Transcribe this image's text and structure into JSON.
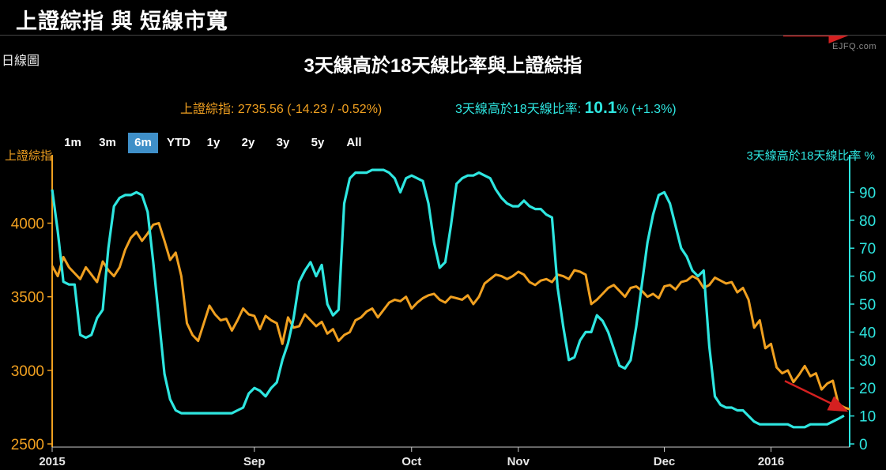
{
  "banner": {
    "title": "上證綜指 與 短線市寬"
  },
  "chart_header": {
    "period_label": "日線圖",
    "watermark": "EJFQ.com",
    "title": "3天線高於18天線比率與上證綜指"
  },
  "legend": {
    "index_label": "上證綜指:",
    "index_value": "2735.56 (-14.23 / -0.52%)",
    "ratio_label": "3天線高於18天線比率:",
    "ratio_value": "10.1",
    "ratio_suffix": "% (+1.3%)"
  },
  "range_buttons": [
    {
      "label": "1m",
      "active": false
    },
    {
      "label": "3m",
      "active": false
    },
    {
      "label": "6m",
      "active": true
    },
    {
      "label": "YTD",
      "active": false
    },
    {
      "label": "1y",
      "active": false
    },
    {
      "label": "2y",
      "active": false
    },
    {
      "label": "3y",
      "active": false
    },
    {
      "label": "5y",
      "active": false
    },
    {
      "label": "All",
      "active": false
    }
  ],
  "colors": {
    "index": "#f0a020",
    "ratio": "#2ee6e0",
    "arrow": "#d42020",
    "active_button": "#3f8fc8"
  },
  "chart_data": {
    "type": "line",
    "title": "3天線高於18天線比率與上證綜指",
    "y_left": {
      "label": "上證綜指",
      "ticks": [
        2500,
        3000,
        3500,
        4000
      ],
      "range": [
        2500,
        4400
      ]
    },
    "y_right": {
      "label": "3天線高於18天線比率 %",
      "ticks": [
        0,
        10,
        20,
        30,
        40,
        50,
        60,
        70,
        80,
        90
      ],
      "range": [
        0,
        100
      ]
    },
    "x_ticks": [
      {
        "label": "2015",
        "day": 0
      },
      {
        "label": "Sep",
        "day": 36
      },
      {
        "label": "Oct",
        "day": 64
      },
      {
        "label": "Nov",
        "day": 83
      },
      {
        "label": "Dec",
        "day": 109
      },
      {
        "label": "2016",
        "day": 128
      }
    ],
    "series": [
      {
        "name": "上證綜指",
        "axis": "left",
        "values": [
          3710,
          3640,
          3770,
          3700,
          3660,
          3620,
          3700,
          3650,
          3600,
          3740,
          3680,
          3640,
          3700,
          3820,
          3900,
          3940,
          3880,
          3930,
          3990,
          4000,
          3880,
          3750,
          3800,
          3640,
          3320,
          3240,
          3200,
          3320,
          3440,
          3380,
          3340,
          3350,
          3270,
          3340,
          3420,
          3380,
          3370,
          3280,
          3370,
          3340,
          3320,
          3180,
          3360,
          3290,
          3300,
          3380,
          3340,
          3300,
          3330,
          3250,
          3280,
          3200,
          3240,
          3260,
          3340,
          3360,
          3400,
          3420,
          3360,
          3410,
          3460,
          3480,
          3470,
          3500,
          3420,
          3460,
          3490,
          3510,
          3520,
          3480,
          3460,
          3500,
          3490,
          3480,
          3510,
          3450,
          3500,
          3590,
          3620,
          3650,
          3640,
          3620,
          3640,
          3670,
          3650,
          3600,
          3580,
          3610,
          3620,
          3600,
          3650,
          3640,
          3620,
          3680,
          3670,
          3650,
          3450,
          3480,
          3520,
          3560,
          3580,
          3540,
          3500,
          3560,
          3570,
          3540,
          3500,
          3520,
          3490,
          3570,
          3580,
          3550,
          3600,
          3610,
          3640,
          3620,
          3560,
          3580,
          3630,
          3610,
          3590,
          3600,
          3530,
          3560,
          3480,
          3290,
          3340,
          3150,
          3180,
          3020,
          2980,
          3000,
          2920,
          2970,
          3030,
          2960,
          2980,
          2870,
          2910,
          2930,
          2770,
          2749,
          2735
        ]
      },
      {
        "name": "3天線高於18天線比率 %",
        "axis": "right",
        "values": [
          91,
          76,
          58,
          57,
          57,
          39,
          38,
          39,
          45,
          48,
          70,
          85,
          88,
          89,
          89,
          90,
          89,
          83,
          65,
          45,
          25,
          16,
          12,
          11,
          11,
          11,
          11,
          11,
          11,
          11,
          11,
          11,
          11,
          12,
          13,
          18,
          20,
          19,
          17,
          20,
          22,
          30,
          36,
          45,
          58,
          62,
          65,
          60,
          64,
          50,
          46,
          48,
          86,
          95,
          97,
          97,
          97,
          98,
          98,
          98,
          97,
          95,
          90,
          95,
          96,
          95,
          94,
          86,
          72,
          63,
          65,
          78,
          93,
          95,
          96,
          96,
          97,
          96,
          95,
          91,
          88,
          86,
          85,
          85,
          87,
          85,
          84,
          84,
          82,
          81,
          56,
          42,
          30,
          31,
          37,
          40,
          40,
          46,
          44,
          40,
          34,
          28,
          27,
          30,
          42,
          57,
          72,
          82,
          89,
          90,
          86,
          78,
          70,
          67,
          62,
          60,
          62,
          35,
          17,
          14,
          13,
          13,
          12,
          12,
          10,
          8,
          7,
          7,
          7,
          7,
          7,
          7,
          6,
          6,
          6,
          7,
          7,
          7,
          7,
          8,
          9,
          10.1
        ]
      }
    ],
    "annotations": [
      {
        "type": "arrow",
        "target_series": "上證綜指",
        "direction": "down-right"
      },
      {
        "type": "arrow",
        "target_series": "3天線高於18天線比率 %",
        "direction": "up-right"
      }
    ]
  }
}
